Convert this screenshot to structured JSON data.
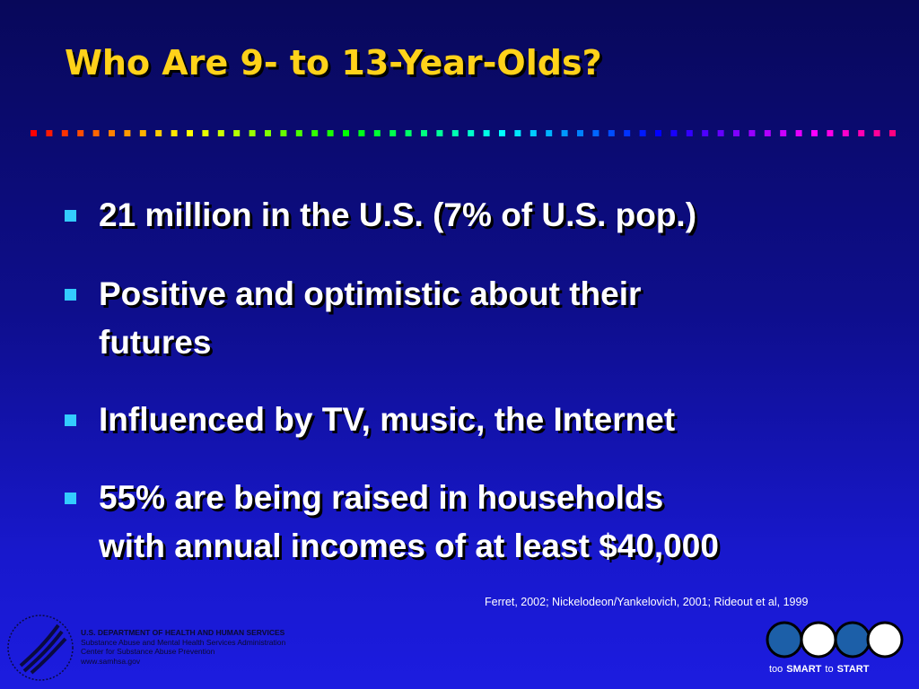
{
  "header": {
    "title": "Who Are 9- to 13-Year-Olds?"
  },
  "bullets": [
    {
      "lines": [
        "21 million in the U.S. (7% of U.S. pop.)"
      ]
    },
    {
      "lines": [
        "Positive and optimistic about their",
        "futures"
      ]
    },
    {
      "lines": [
        "Influenced by TV, music, the Internet"
      ]
    },
    {
      "lines": [
        "55% are being raised in households",
        "with annual incomes of at least $40,000"
      ]
    }
  ],
  "citation": "Ferret, 2002; Nickelodeon/Yankelovich, 2001; Rideout et al, 1999",
  "footer": {
    "lines": [
      "U.S. DEPARTMENT OF HEALTH AND HUMAN SERVICES",
      "Substance Abuse and Mental Health Services Administration",
      "Center for Substance Abuse Prevention",
      "www.samhsa.gov"
    ]
  },
  "logo": {
    "words": [
      "too",
      "SMART",
      "to",
      "START"
    ]
  }
}
